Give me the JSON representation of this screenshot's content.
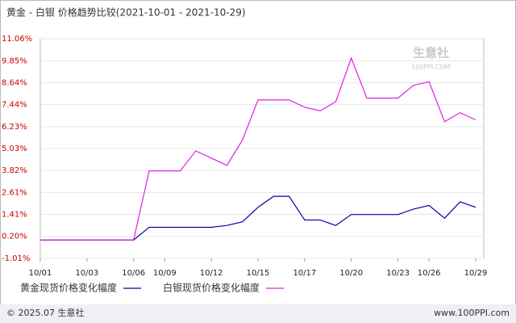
{
  "chart_data": {
    "type": "line",
    "title": "黄金 - 白银 价格趋势比较(2021-10-01 - 2021-10-29)",
    "categories": [
      "10/01",
      null,
      null,
      "10/03",
      null,
      null,
      "10/06",
      null,
      "10/09",
      null,
      null,
      "10/12",
      null,
      null,
      "10/15",
      null,
      null,
      "10/17",
      null,
      null,
      "10/20",
      null,
      null,
      "10/23",
      null,
      "10/26",
      null,
      null,
      "10/29"
    ],
    "series": [
      {
        "name": "黄金现货价格变化幅度",
        "color": "#0000aa",
        "values": [
          0,
          0,
          0,
          0,
          0,
          0,
          0,
          0.7,
          0.7,
          0.7,
          0.7,
          0.7,
          0.8,
          1.0,
          1.8,
          2.4,
          2.4,
          1.1,
          1.1,
          0.8,
          1.4,
          1.4,
          1.4,
          1.4,
          1.7,
          1.9,
          1.2,
          2.1,
          1.8
        ]
      },
      {
        "name": "白银现货价格变化幅度",
        "color": "#e020e0",
        "values": [
          0,
          0,
          0,
          0,
          0,
          0,
          0,
          3.8,
          3.8,
          3.8,
          4.9,
          4.5,
          4.1,
          5.5,
          7.7,
          7.7,
          7.7,
          7.3,
          7.1,
          7.6,
          10.0,
          7.8,
          7.8,
          7.8,
          8.5,
          8.7,
          6.5,
          7.0,
          6.6
        ]
      }
    ],
    "ylim": [
      -1.01,
      11.06
    ],
    "yticks": [
      {
        "value": -1.01,
        "label": "-1.01%"
      },
      {
        "value": 0.2,
        "label": "0.20%"
      },
      {
        "value": 1.41,
        "label": "1.41%"
      },
      {
        "value": 2.61,
        "label": "2.61%"
      },
      {
        "value": 3.82,
        "label": "3.82%"
      },
      {
        "value": 5.03,
        "label": "5.03%"
      },
      {
        "value": 6.23,
        "label": "6.23%"
      },
      {
        "value": 7.44,
        "label": "7.44%"
      },
      {
        "value": 8.64,
        "label": "8.64%"
      },
      {
        "value": 9.85,
        "label": "9.85%"
      },
      {
        "value": 11.06,
        "label": "11.06%"
      }
    ],
    "grid": true,
    "watermark": [
      "生意社",
      "100PPI.COM"
    ]
  },
  "footer": {
    "left": "© 2025.07 生意社",
    "right": "www.100PPI.com"
  }
}
